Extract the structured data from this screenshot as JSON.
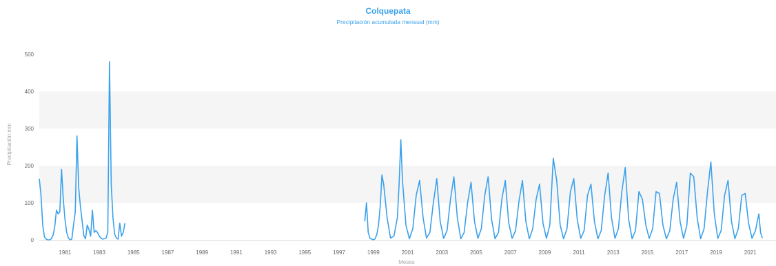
{
  "chart_data": {
    "type": "line",
    "title": "Colquepata",
    "subtitle": "Precipitación acumulada mensual (mm)",
    "xlabel": "Meses",
    "ylabel": "Precipitación mm",
    "ylim": [
      0,
      500
    ],
    "yticks": [
      "0",
      "100",
      "200",
      "300",
      "400",
      "500"
    ],
    "xticks": [
      "1981",
      "1983",
      "1985",
      "1987",
      "1989",
      "1991",
      "1993",
      "1995",
      "1997",
      "1999",
      "2001",
      "2003",
      "2005",
      "2007",
      "2009",
      "2011",
      "2013",
      "2015",
      "2017",
      "2019",
      "2021"
    ],
    "xrange": [
      1980.0,
      2023.0
    ],
    "grid": "alternating horizontal bands",
    "color": "#3aa1ec",
    "series": [
      {
        "segments": [
          {
            "x_start": 1980.0,
            "points": [
              [
                1980.0,
                165
              ],
              [
                1980.1,
                120
              ],
              [
                1980.2,
                40
              ],
              [
                1980.3,
                8
              ],
              [
                1980.4,
                2
              ],
              [
                1980.5,
                0
              ],
              [
                1980.6,
                0
              ],
              [
                1980.7,
                3
              ],
              [
                1980.8,
                12
              ],
              [
                1980.9,
                35
              ],
              [
                1981.0,
                80
              ],
              [
                1981.1,
                70
              ],
              [
                1981.2,
                75
              ],
              [
                1981.3,
                190
              ],
              [
                1981.4,
                110
              ],
              [
                1981.5,
                55
              ],
              [
                1981.6,
                20
              ],
              [
                1981.7,
                5
              ],
              [
                1981.8,
                0
              ],
              [
                1981.9,
                2
              ],
              [
                1982.0,
                40
              ],
              [
                1982.1,
                75
              ],
              [
                1982.2,
                280
              ],
              [
                1982.3,
                140
              ],
              [
                1982.4,
                90
              ],
              [
                1982.5,
                50
              ],
              [
                1982.6,
                12
              ],
              [
                1982.7,
                3
              ],
              [
                1982.8,
                40
              ],
              [
                1982.9,
                28
              ],
              [
                1983.0,
                10
              ],
              [
                1983.1,
                80
              ],
              [
                1983.2,
                20
              ],
              [
                1983.3,
                25
              ],
              [
                1983.4,
                20
              ],
              [
                1983.5,
                10
              ],
              [
                1983.6,
                5
              ],
              [
                1983.7,
                2
              ],
              [
                1983.8,
                3
              ],
              [
                1983.9,
                5
              ],
              [
                1984.0,
                20
              ],
              [
                1984.1,
                480
              ],
              [
                1984.2,
                150
              ],
              [
                1984.3,
                60
              ],
              [
                1984.4,
                15
              ],
              [
                1984.5,
                5
              ],
              [
                1984.6,
                2
              ],
              [
                1984.7,
                45
              ],
              [
                1984.8,
                10
              ],
              [
                1984.9,
                20
              ],
              [
                1985.0,
                45
              ]
            ]
          },
          {
            "points": [
              [
                1999.0,
                50
              ],
              [
                1999.1,
                100
              ],
              [
                1999.2,
                20
              ],
              [
                1999.3,
                5
              ],
              [
                1999.4,
                2
              ],
              [
                1999.5,
                0
              ],
              [
                1999.6,
                3
              ],
              [
                1999.7,
                15
              ],
              [
                1999.8,
                40
              ],
              [
                1999.9,
                90
              ],
              [
                2000.0,
                175
              ],
              [
                2000.1,
                150
              ],
              [
                2000.3,
                60
              ],
              [
                2000.5,
                5
              ],
              [
                2000.7,
                10
              ],
              [
                2000.9,
                60
              ],
              [
                2001.0,
                150
              ],
              [
                2001.1,
                270
              ],
              [
                2001.2,
                160
              ],
              [
                2001.4,
                40
              ],
              [
                2001.6,
                3
              ],
              [
                2001.8,
                30
              ],
              [
                2002.0,
                120
              ],
              [
                2002.2,
                160
              ],
              [
                2002.4,
                60
              ],
              [
                2002.6,
                5
              ],
              [
                2002.8,
                20
              ],
              [
                2003.0,
                100
              ],
              [
                2003.2,
                165
              ],
              [
                2003.4,
                50
              ],
              [
                2003.6,
                4
              ],
              [
                2003.8,
                25
              ],
              [
                2004.0,
                110
              ],
              [
                2004.2,
                170
              ],
              [
                2004.4,
                60
              ],
              [
                2004.6,
                3
              ],
              [
                2004.8,
                20
              ],
              [
                2005.0,
                100
              ],
              [
                2005.2,
                155
              ],
              [
                2005.4,
                50
              ],
              [
                2005.6,
                4
              ],
              [
                2005.8,
                30
              ],
              [
                2006.0,
                120
              ],
              [
                2006.2,
                170
              ],
              [
                2006.4,
                55
              ],
              [
                2006.6,
                3
              ],
              [
                2006.8,
                20
              ],
              [
                2007.0,
                110
              ],
              [
                2007.2,
                160
              ],
              [
                2007.4,
                45
              ],
              [
                2007.6,
                4
              ],
              [
                2007.8,
                25
              ],
              [
                2008.0,
                105
              ],
              [
                2008.2,
                160
              ],
              [
                2008.4,
                50
              ],
              [
                2008.6,
                3
              ],
              [
                2008.8,
                30
              ],
              [
                2009.0,
                110
              ],
              [
                2009.2,
                150
              ],
              [
                2009.4,
                45
              ],
              [
                2009.6,
                4
              ],
              [
                2009.8,
                40
              ],
              [
                2010.0,
                220
              ],
              [
                2010.2,
                160
              ],
              [
                2010.4,
                40
              ],
              [
                2010.6,
                3
              ],
              [
                2010.8,
                30
              ],
              [
                2011.0,
                130
              ],
              [
                2011.2,
                165
              ],
              [
                2011.4,
                55
              ],
              [
                2011.6,
                4
              ],
              [
                2011.8,
                25
              ],
              [
                2012.0,
                120
              ],
              [
                2012.2,
                150
              ],
              [
                2012.4,
                50
              ],
              [
                2012.6,
                3
              ],
              [
                2012.8,
                25
              ],
              [
                2013.0,
                120
              ],
              [
                2013.2,
                180
              ],
              [
                2013.4,
                60
              ],
              [
                2013.6,
                4
              ],
              [
                2013.8,
                30
              ],
              [
                2014.0,
                130
              ],
              [
                2014.2,
                195
              ],
              [
                2014.4,
                55
              ],
              [
                2014.6,
                3
              ],
              [
                2014.8,
                25
              ],
              [
                2015.0,
                130
              ],
              [
                2015.2,
                110
              ],
              [
                2015.4,
                40
              ],
              [
                2015.6,
                4
              ],
              [
                2015.8,
                30
              ],
              [
                2016.0,
                130
              ],
              [
                2016.2,
                125
              ],
              [
                2016.4,
                40
              ],
              [
                2016.6,
                3
              ],
              [
                2016.8,
                25
              ],
              [
                2017.0,
                110
              ],
              [
                2017.2,
                155
              ],
              [
                2017.4,
                50
              ],
              [
                2017.6,
                4
              ],
              [
                2017.8,
                40
              ],
              [
                2018.0,
                180
              ],
              [
                2018.2,
                170
              ],
              [
                2018.4,
                60
              ],
              [
                2018.6,
                3
              ],
              [
                2018.8,
                30
              ],
              [
                2019.0,
                130
              ],
              [
                2019.2,
                210
              ],
              [
                2019.4,
                70
              ],
              [
                2019.6,
                4
              ],
              [
                2019.8,
                25
              ],
              [
                2020.0,
                120
              ],
              [
                2020.2,
                160
              ],
              [
                2020.4,
                50
              ],
              [
                2020.6,
                3
              ],
              [
                2020.8,
                30
              ],
              [
                2021.0,
                120
              ],
              [
                2021.2,
                125
              ],
              [
                2021.4,
                45
              ],
              [
                2021.6,
                4
              ],
              [
                2021.8,
                25
              ],
              [
                2022.0,
                70
              ],
              [
                2022.1,
                20
              ],
              [
                2022.2,
                5
              ]
            ]
          }
        ]
      }
    ]
  }
}
